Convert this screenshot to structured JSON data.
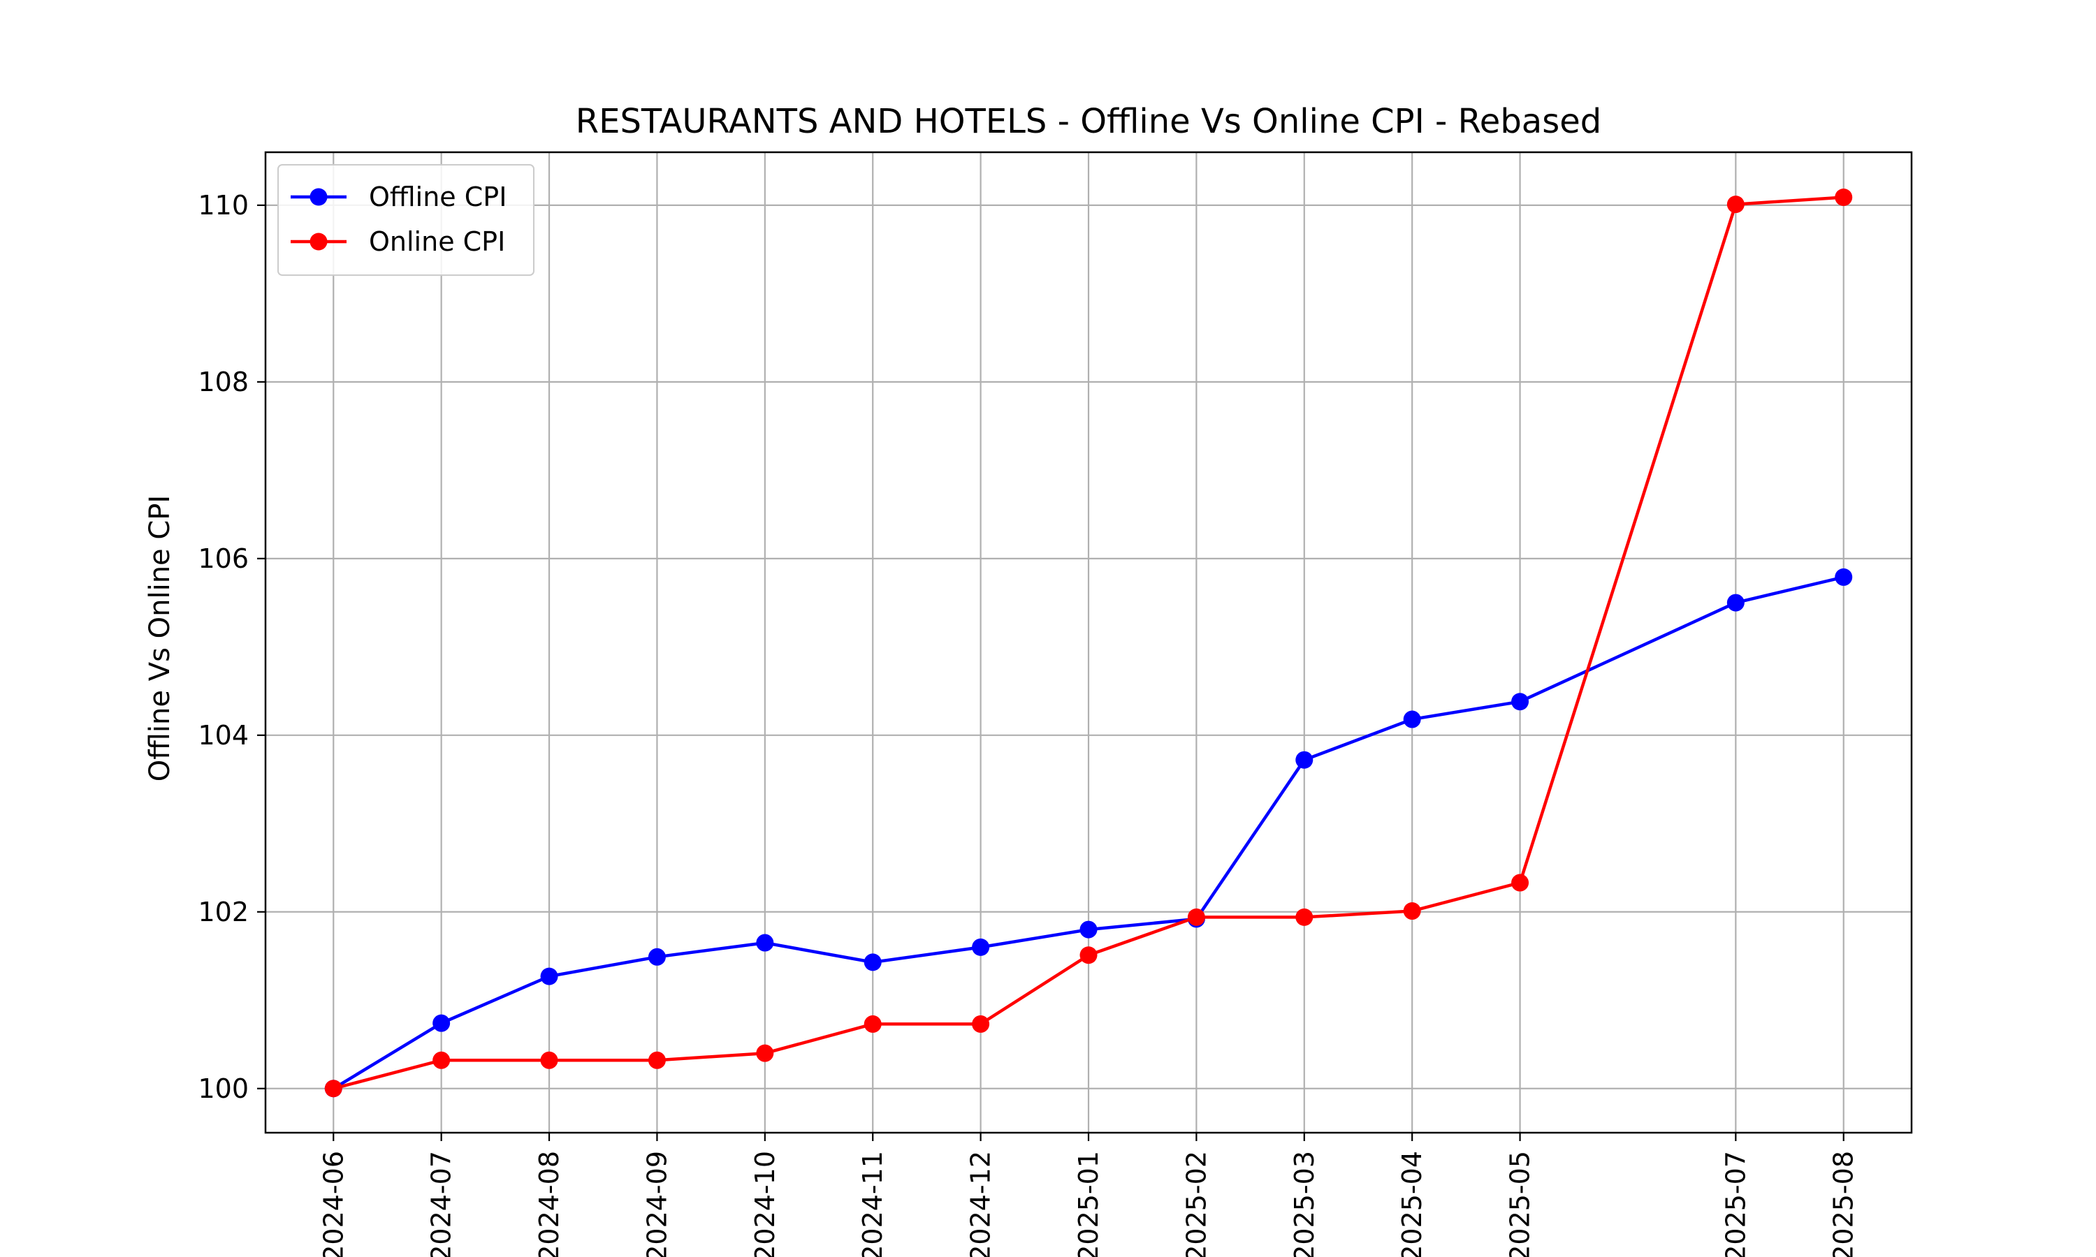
{
  "chart_data": {
    "type": "line",
    "title": "RESTAURANTS AND HOTELS - Offline Vs Online CPI - Rebased",
    "xlabel": "",
    "ylabel": "Offline Vs Online CPI",
    "x": [
      "2024-06",
      "2024-07",
      "2024-08",
      "2024-09",
      "2024-10",
      "2024-11",
      "2024-12",
      "2025-01",
      "2025-02",
      "2025-03",
      "2025-04",
      "2025-05",
      "2025-07",
      "2025-08"
    ],
    "ylim": [
      99.5,
      110.6
    ],
    "yticks": [
      100,
      102,
      104,
      106,
      108,
      110
    ],
    "grid": true,
    "legend": "upper-left",
    "series": [
      {
        "name": "Offline CPI",
        "color": "#0000ff",
        "marker": "circle",
        "values": [
          100.0,
          100.74,
          101.27,
          101.49,
          101.65,
          101.43,
          101.6,
          101.8,
          101.92,
          103.72,
          104.18,
          104.38,
          105.5,
          105.79
        ]
      },
      {
        "name": "Online CPI",
        "color": "#ff0000",
        "marker": "circle",
        "values": [
          100.0,
          100.32,
          100.32,
          100.32,
          100.4,
          100.73,
          100.73,
          101.51,
          101.94,
          101.94,
          102.01,
          102.33,
          110.01,
          110.09
        ]
      }
    ]
  }
}
